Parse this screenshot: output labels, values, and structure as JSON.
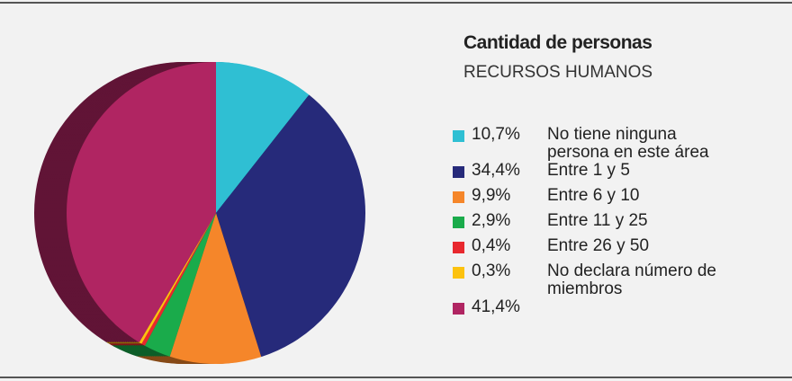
{
  "chart_data": {
    "type": "pie",
    "title": "Cantidad de personas",
    "subtitle": "RECURSOS HUMANOS",
    "categories": [
      "No tiene ninguna persona en este área",
      "Entre 1 y 5",
      "Entre 6 y 10",
      "Entre 11 y 25",
      "Entre 26 y 50",
      "No declara número de miembros",
      null
    ],
    "values": [
      10.7,
      34.4,
      9.9,
      2.9,
      0.4,
      0.3,
      41.4
    ],
    "value_labels": [
      "10,7%",
      "34,4%",
      "9,9%",
      "2,9%",
      "0,4%",
      "0,3%",
      "41,4%"
    ],
    "colors": [
      "#2fbfd3",
      "#262a7a",
      "#f5862a",
      "#1aab4b",
      "#e8282e",
      "#fcc20f",
      "#b02562"
    ]
  }
}
